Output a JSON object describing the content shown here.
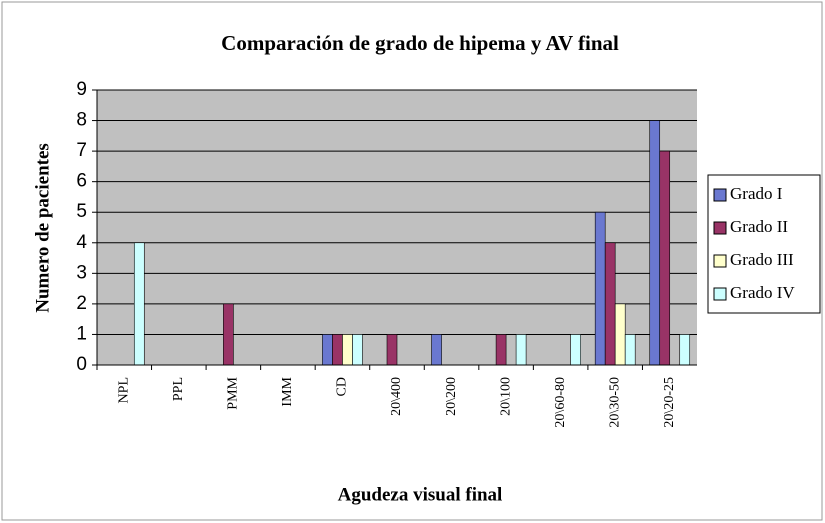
{
  "chart_data": {
    "type": "bar",
    "title": "Comparación de grado de hipema y AV final",
    "x_label": "Agudeza visual final",
    "y_label": "Numero de pacientes",
    "categories": [
      "NPL",
      "PPL",
      "PMM",
      "IMM",
      "CD",
      "20\\400",
      "20\\200",
      "20\\100",
      "20\\60-80",
      "20\\30-50",
      "20\\20-25"
    ],
    "series": [
      {
        "name": "Grado I",
        "color": "#6a78d0",
        "values": [
          0,
          0,
          0,
          0,
          1,
          0,
          1,
          0,
          0,
          5,
          8
        ]
      },
      {
        "name": "Grado II",
        "color": "#993366",
        "values": [
          0,
          0,
          2,
          0,
          1,
          1,
          0,
          1,
          0,
          4,
          7
        ]
      },
      {
        "name": "Grado III",
        "color": "#ffffcc",
        "values": [
          0,
          0,
          0,
          0,
          1,
          0,
          0,
          0,
          0,
          2,
          0
        ]
      },
      {
        "name": "Grado IV",
        "color": "#ccffff",
        "values": [
          4,
          0,
          0,
          0,
          1,
          0,
          0,
          1,
          1,
          1,
          1
        ]
      }
    ],
    "ylim": [
      0,
      9
    ],
    "yticks": [
      0,
      1,
      2,
      3,
      4,
      5,
      6,
      7,
      8,
      9
    ],
    "grid": true,
    "legend": "right"
  }
}
